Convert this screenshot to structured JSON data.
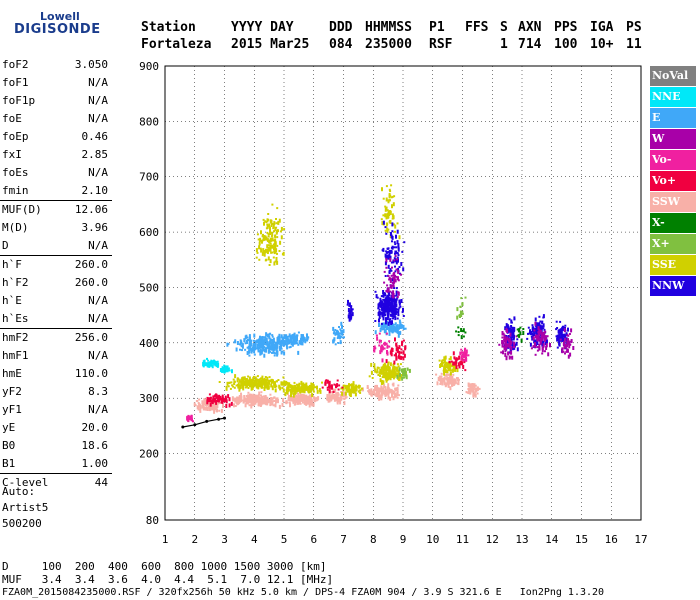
{
  "logo": {
    "line1": "Lowell",
    "line2": "DIGISONDE"
  },
  "header": {
    "labels": [
      "Station",
      "YYYY DAY",
      "DDD",
      "HHMMSS",
      "P1",
      "FFS",
      "S",
      "AXN",
      "PPS",
      "IGA",
      "PS"
    ],
    "values": [
      "Fortaleza",
      "2015 Mar25",
      "084",
      "235000",
      "RSF",
      "1",
      "714",
      "100",
      "10+",
      "11"
    ]
  },
  "params": [
    {
      "name": "foF2",
      "value": "3.050"
    },
    {
      "name": "foF1",
      "value": "N/A"
    },
    {
      "name": "foF1p",
      "value": "N/A"
    },
    {
      "name": "foE",
      "value": "N/A"
    },
    {
      "name": "foEp",
      "value": "0.46"
    },
    {
      "name": "fxI",
      "value": "2.85"
    },
    {
      "name": "foEs",
      "value": "N/A"
    },
    {
      "name": "fmin",
      "value": "2.10"
    },
    {
      "name": "MUF(D)",
      "value": "12.06",
      "sep": true
    },
    {
      "name": "M(D)",
      "value": "3.96"
    },
    {
      "name": "D",
      "value": "N/A"
    },
    {
      "name": "h`F",
      "value": "260.0",
      "sep": true
    },
    {
      "name": "h`F2",
      "value": "260.0"
    },
    {
      "name": "h`E",
      "value": "N/A"
    },
    {
      "name": "h`Es",
      "value": "N/A"
    },
    {
      "name": "hmF2",
      "value": "256.0",
      "sep": true
    },
    {
      "name": "hmF1",
      "value": "N/A"
    },
    {
      "name": "hmE",
      "value": "110.0"
    },
    {
      "name": "yF2",
      "value": "8.3"
    },
    {
      "name": "yF1",
      "value": "N/A"
    },
    {
      "name": "yE",
      "value": "20.0"
    },
    {
      "name": "B0",
      "value": "18.6"
    },
    {
      "name": "B1",
      "value": "1.00"
    },
    {
      "name": "C-level",
      "value": "44",
      "sep": true
    }
  ],
  "auto": {
    "line1": "Auto:",
    "line2": "Artist5",
    "line3": "500200"
  },
  "legend": [
    {
      "label": "NoVal",
      "color": "#808080"
    },
    {
      "label": "NNE",
      "color": "#00e8f8"
    },
    {
      "label": "E",
      "color": "#40a8f8"
    },
    {
      "label": "W",
      "color": "#a800a8"
    },
    {
      "label": "Vo-",
      "color": "#f020a0"
    },
    {
      "label": "Vo+",
      "color": "#f00040"
    },
    {
      "label": "SSW",
      "color": "#f8b0a8"
    },
    {
      "label": "X-",
      "color": "#008000"
    },
    {
      "label": "X+",
      "color": "#80c040"
    },
    {
      "label": "SSE",
      "color": "#d0d000"
    },
    {
      "label": "NNW",
      "color": "#2000e0"
    }
  ],
  "footer": {
    "d_line": "D     100  200  400  600  800 1000 1500 3000 [km]",
    "muf_line": "MUF   3.4  3.4  3.6  4.0  4.4  5.1  7.0 12.1 [MHz]",
    "file_line": "FZA0M_2015084235000.RSF / 320fx256h 50 kHz 5.0 km / DPS-4 FZA0M 904 / 3.9 S 321.6 E   Ion2Png 1.3.20"
  },
  "chart_data": {
    "type": "scatter",
    "xlim": [
      1,
      17
    ],
    "ylim": [
      80,
      900
    ],
    "x_ticks": [
      "1",
      "2",
      "3",
      "4",
      "5",
      "6",
      "7",
      "8",
      "9",
      "10",
      "11",
      "12",
      "13",
      "14",
      "15",
      "16",
      "17"
    ],
    "y_ticks": [
      "80",
      "200",
      "300",
      "400",
      "500",
      "600",
      "700",
      "800",
      "900"
    ],
    "grid": true,
    "trace_points": [
      [
        1.6,
        248
      ],
      [
        2.0,
        252
      ],
      [
        2.4,
        258
      ],
      [
        2.8,
        262
      ],
      [
        3.0,
        264
      ]
    ],
    "series": [
      {
        "name": "SSW",
        "color": "#f8b0a8",
        "clusters": [
          [
            2.5,
            290,
            0.6,
            15,
            120
          ],
          [
            4.0,
            300,
            1.2,
            15,
            200
          ],
          [
            5.5,
            300,
            0.8,
            15,
            140
          ],
          [
            6.7,
            305,
            0.5,
            15,
            80
          ],
          [
            8.3,
            315,
            0.8,
            15,
            140
          ],
          [
            10.5,
            335,
            0.5,
            15,
            90
          ],
          [
            11.3,
            320,
            0.3,
            20,
            50
          ]
        ]
      },
      {
        "name": "SSE",
        "color": "#d0d000",
        "clusters": [
          [
            4.0,
            330,
            1.3,
            15,
            260
          ],
          [
            5.5,
            320,
            0.9,
            15,
            140
          ],
          [
            7.2,
            320,
            0.5,
            15,
            80
          ],
          [
            8.5,
            350,
            0.7,
            25,
            160
          ],
          [
            10.5,
            360,
            0.4,
            20,
            70
          ],
          [
            4.5,
            590,
            0.6,
            70,
            150
          ],
          [
            8.5,
            640,
            0.4,
            60,
            60
          ]
        ]
      },
      {
        "name": "E",
        "color": "#40a8f8",
        "clusters": [
          [
            4.3,
            400,
            1.3,
            25,
            240
          ],
          [
            5.3,
            410,
            0.6,
            15,
            80
          ],
          [
            8.6,
            430,
            0.7,
            20,
            100
          ],
          [
            6.8,
            420,
            0.3,
            30,
            40
          ]
        ]
      },
      {
        "name": "NNE",
        "color": "#00e8f8",
        "clusters": [
          [
            2.5,
            365,
            0.4,
            8,
            40
          ],
          [
            3.0,
            355,
            0.3,
            8,
            30
          ]
        ]
      },
      {
        "name": "NNW",
        "color": "#2000e0",
        "clusters": [
          [
            8.5,
            470,
            0.6,
            40,
            240
          ],
          [
            12.6,
            410,
            0.3,
            40,
            90
          ],
          [
            13.5,
            420,
            0.4,
            35,
            110
          ],
          [
            14.3,
            415,
            0.3,
            35,
            70
          ],
          [
            8.6,
            560,
            0.5,
            80,
            80
          ],
          [
            7.2,
            460,
            0.15,
            30,
            25
          ]
        ]
      },
      {
        "name": "W",
        "color": "#a800a8",
        "clusters": [
          [
            12.5,
            400,
            0.4,
            40,
            60
          ],
          [
            13.6,
            405,
            0.4,
            40,
            60
          ],
          [
            14.5,
            400,
            0.3,
            30,
            40
          ],
          [
            8.6,
            520,
            0.5,
            60,
            50
          ]
        ]
      },
      {
        "name": "Vo+",
        "color": "#f00040",
        "clusters": [
          [
            2.8,
            300,
            0.6,
            15,
            60
          ],
          [
            6.5,
            325,
            0.5,
            15,
            30
          ],
          [
            8.8,
            390,
            0.5,
            30,
            40
          ],
          [
            10.8,
            370,
            0.4,
            20,
            30
          ]
        ]
      },
      {
        "name": "Vo-",
        "color": "#f020a0",
        "clusters": [
          [
            1.8,
            265,
            0.2,
            10,
            20
          ],
          [
            8.2,
            400,
            0.4,
            30,
            30
          ],
          [
            11.0,
            380,
            0.3,
            20,
            20
          ]
        ]
      },
      {
        "name": "X+",
        "color": "#80c040",
        "clusters": [
          [
            9.0,
            350,
            0.3,
            15,
            25
          ],
          [
            10.9,
            460,
            0.2,
            30,
            15
          ]
        ]
      },
      {
        "name": "X-",
        "color": "#008000",
        "clusters": [
          [
            10.9,
            420,
            0.2,
            20,
            10
          ],
          [
            12.9,
            420,
            0.2,
            20,
            10
          ]
        ]
      }
    ]
  }
}
